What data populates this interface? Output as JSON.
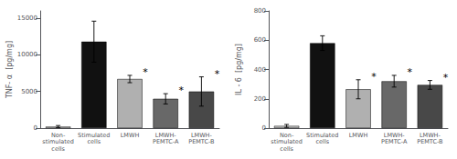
{
  "chart_data": [
    {
      "type": "bar",
      "ylabel": "TNF- α  [pg/mg]",
      "categories": [
        "Non-\nstimulated\ncells",
        "Stimulated\ncells",
        "LMWH",
        "LMWH-\nPEMTC-A",
        "LMWH-\nPEMTC-B"
      ],
      "values": [
        200,
        11800,
        6700,
        4000,
        5000
      ],
      "errors": [
        150,
        2800,
        500,
        700,
        2000
      ],
      "colors": [
        "#c8c8c8",
        "#111111",
        "#b0b0b0",
        "#686868",
        "#484848"
      ],
      "ylim": [
        0,
        16000
      ],
      "yticks": [
        0,
        5000,
        10000,
        15000
      ],
      "grid": false,
      "annotations": [
        {
          "category": "LMWH",
          "text": "*"
        },
        {
          "category": "LMWH-\nPEMTC-A",
          "text": "*"
        },
        {
          "category": "LMWH-\nPEMTC-B",
          "text": "*"
        }
      ]
    },
    {
      "type": "bar",
      "ylabel": "IL - 6  [pg/mg]",
      "categories": [
        "Non-\nstimulated\ncells",
        "Stimulated\ncells",
        "LMWH",
        "LMWH-\nPEMTC-A",
        "LMWH-\nPEMTC-B"
      ],
      "values": [
        15,
        580,
        265,
        320,
        295
      ],
      "errors": [
        10,
        50,
        65,
        40,
        30
      ],
      "colors": [
        "#c8c8c8",
        "#111111",
        "#b0b0b0",
        "#686868",
        "#484848"
      ],
      "ylim": [
        0,
        800
      ],
      "yticks": [
        0,
        200,
        400,
        600,
        800
      ],
      "grid": false,
      "annotations": [
        {
          "category": "LMWH",
          "text": "*"
        },
        {
          "category": "LMWH-\nPEMTC-A",
          "text": "*"
        },
        {
          "category": "LMWH-\nPEMTC-B",
          "text": "*"
        }
      ]
    }
  ]
}
